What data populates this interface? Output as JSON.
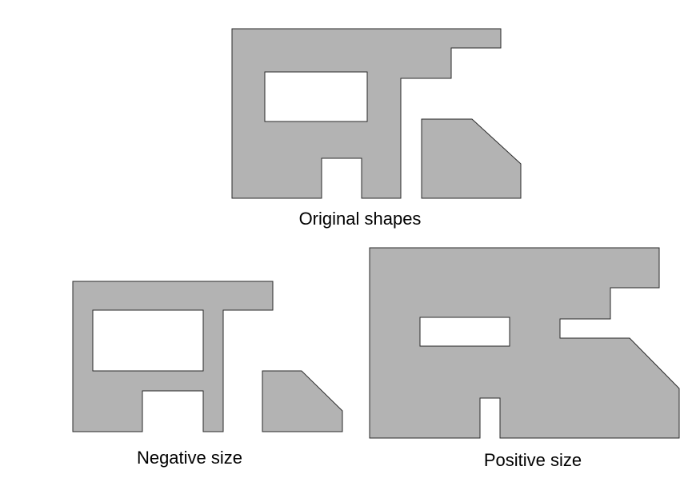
{
  "captions": {
    "original": "Original shapes",
    "negative": "Negative size",
    "positive": "Positive size"
  },
  "colors": {
    "shape_fill": "#b3b3b3",
    "shape_stroke": "#2a2a2a",
    "background": "#ffffff",
    "text": "#000000"
  }
}
